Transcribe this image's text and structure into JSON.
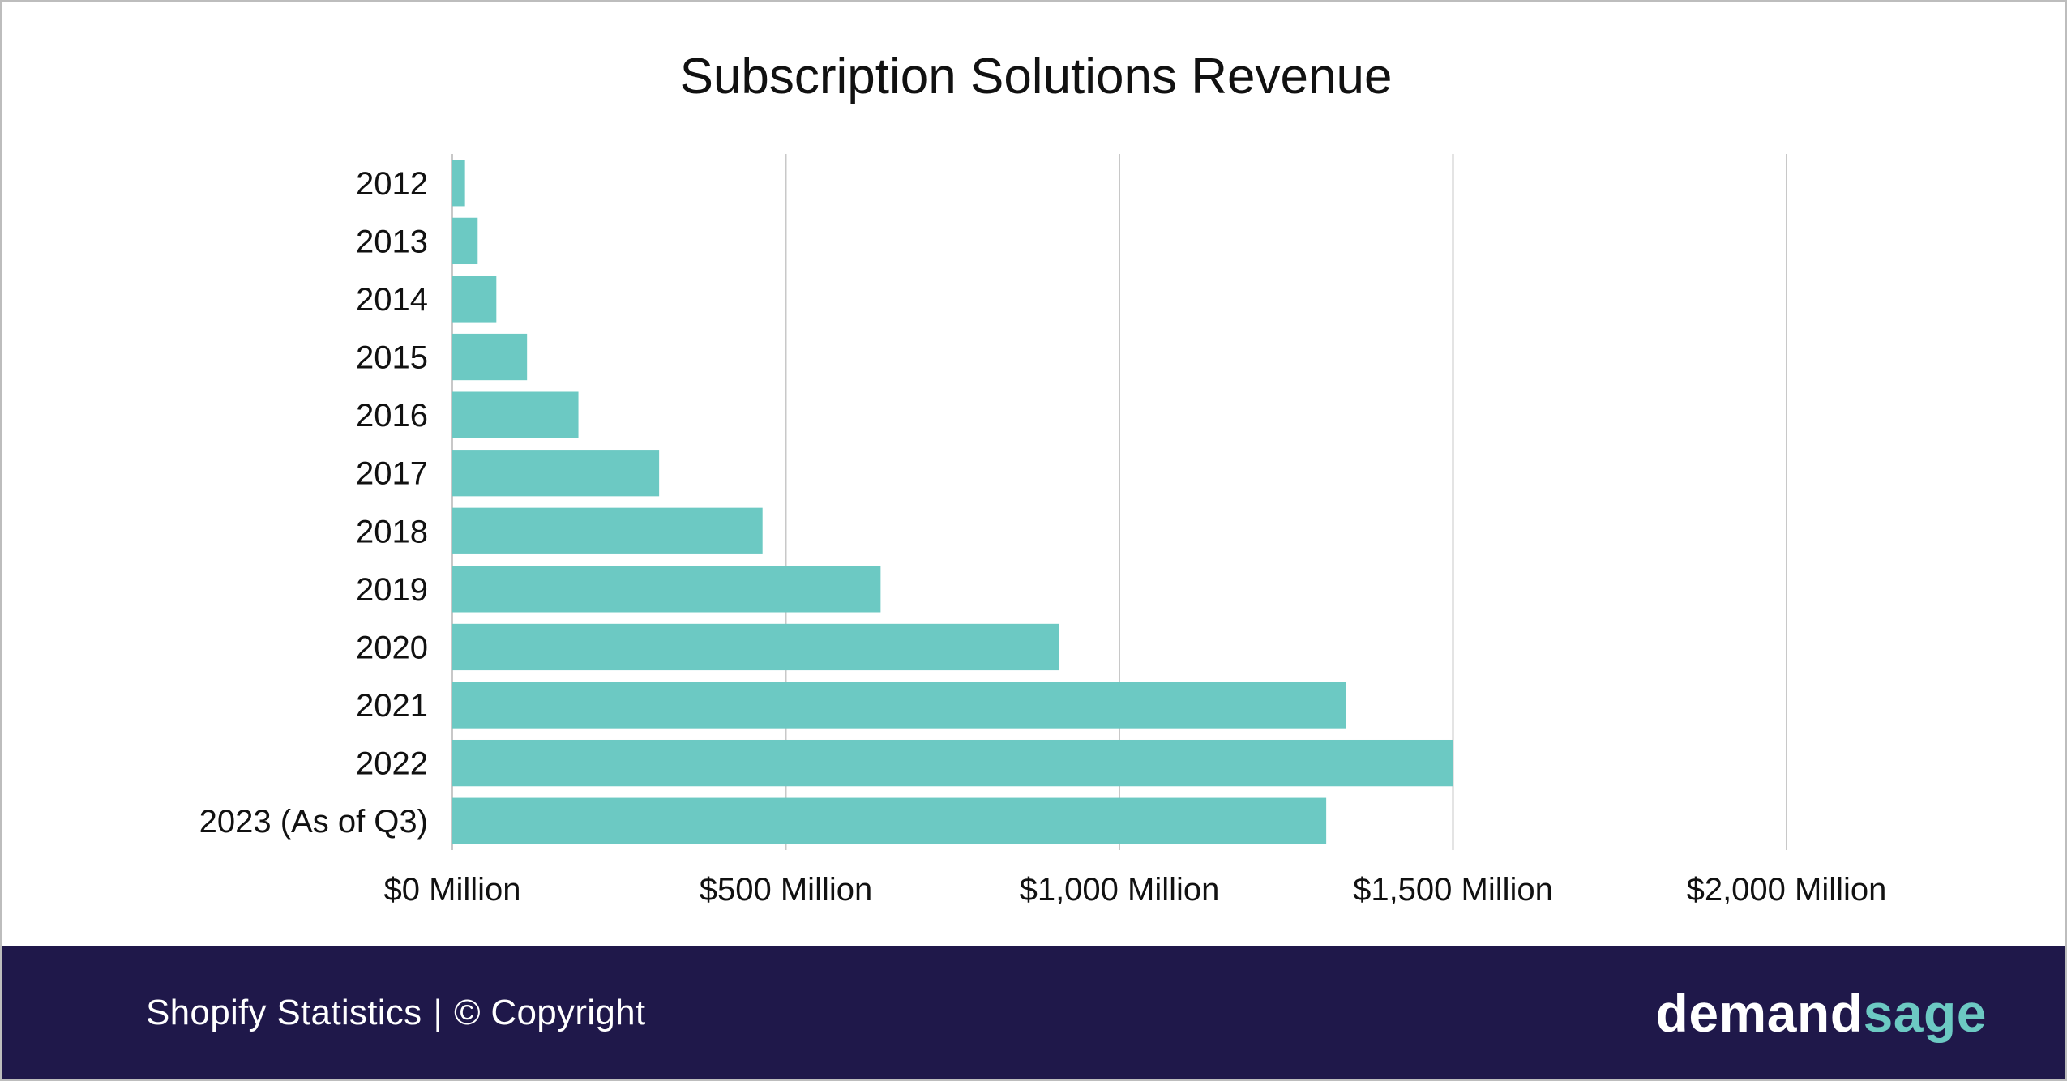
{
  "chart_data": {
    "type": "bar",
    "orientation": "horizontal",
    "title": "Subscription Solutions Revenue",
    "xlabel": "",
    "ylabel": "",
    "categories": [
      "2012",
      "2013",
      "2014",
      "2015",
      "2016",
      "2017",
      "2018",
      "2019",
      "2020",
      "2021",
      "2022",
      "2023 (As of Q3)"
    ],
    "values": [
      19,
      38,
      66,
      112,
      189,
      310,
      465,
      642,
      909,
      1340,
      1500,
      1310
    ],
    "xlim": [
      0,
      2000
    ],
    "x_ticks": [
      0,
      500,
      1000,
      1500,
      2000
    ],
    "x_tick_labels": [
      "$0 Million",
      "$500 Million",
      "$1,000 Million",
      "$1,500 Million",
      "$2,000 Million"
    ],
    "grid": "vertical",
    "legend": "none",
    "bar_color": "#6cc9c3",
    "grid_color": "#c8c8c8"
  },
  "footer": {
    "caption_left": "Shopify Statistics",
    "caption_sep": "|",
    "caption_right": "© Copyright",
    "brand_part1": "demand",
    "brand_part2": "sage",
    "background": "#1f184a"
  }
}
